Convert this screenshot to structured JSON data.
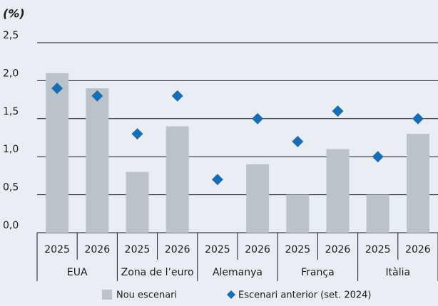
{
  "chart_data": {
    "type": "bar",
    "y_label": "(%)",
    "categories": [
      "2025",
      "2026",
      "2025",
      "2026",
      "2025",
      "2026",
      "2025",
      "2026",
      "2025",
      "2026"
    ],
    "groups": [
      "EUA",
      "Zona de l’euro",
      "Alemanya",
      "França",
      "Itàlia"
    ],
    "series": [
      {
        "name": "Nou escenari",
        "type": "bar",
        "color": "#b9c3c9",
        "values": [
          2.1,
          1.9,
          0.8,
          1.4,
          0,
          0.9,
          0.5,
          1.1,
          0.5,
          1.3
        ]
      },
      {
        "name": "Escenari anterior (set. 2024)",
        "type": "scatter",
        "color": "#1a6db3",
        "values": [
          1.9,
          1.8,
          1.3,
          1.8,
          0.7,
          1.5,
          1.2,
          1.6,
          1.0,
          1.5
        ]
      }
    ],
    "ylim": [
      0,
      2.5
    ],
    "yticks": [
      {
        "value": 0,
        "label": "0,0"
      },
      {
        "value": 0.5,
        "label": "0,5"
      },
      {
        "value": 1,
        "label": "1,0"
      },
      {
        "value": 1.5,
        "label": "1,5"
      },
      {
        "value": 2,
        "label": "2,0"
      },
      {
        "value": 2.5,
        "label": "2,5"
      }
    ],
    "grid": true
  }
}
